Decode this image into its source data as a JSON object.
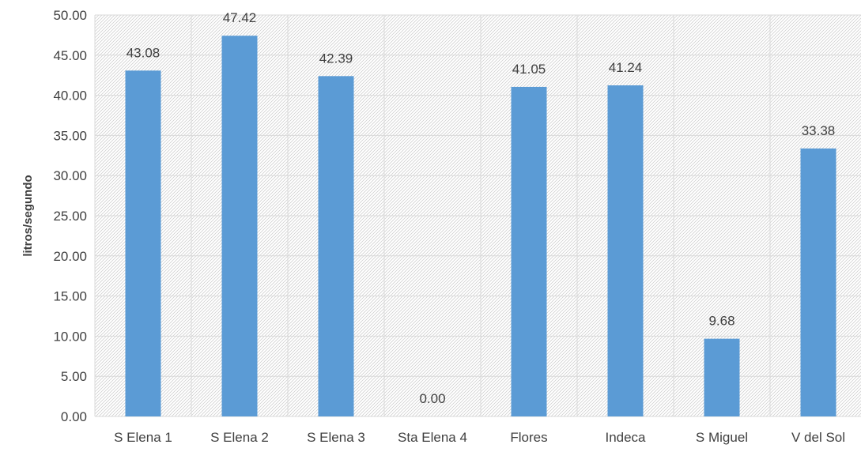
{
  "chart_data": {
    "type": "bar",
    "categories": [
      "S Elena 1",
      "S Elena 2",
      "S Elena 3",
      "Sta Elena 4",
      "Flores",
      "Indeca",
      "S Miguel",
      "V del Sol"
    ],
    "values": [
      43.08,
      47.42,
      42.39,
      0.0,
      41.05,
      41.24,
      9.68,
      33.38
    ],
    "data_labels": [
      "43.08",
      "47.42",
      "42.39",
      "0.00",
      "41.05",
      "41.24",
      "9.68",
      "33.38"
    ],
    "ylabel": "litros/segundo",
    "xlabel": "",
    "ylim": [
      0,
      50
    ],
    "yticks": [
      "0.00",
      "5.00",
      "10.00",
      "15.00",
      "20.00",
      "25.00",
      "30.00",
      "35.00",
      "40.00",
      "45.00",
      "50.00"
    ],
    "grid": true,
    "legend": "none",
    "bar_color": "#5b9bd5",
    "grid_color": "#d9d9d9",
    "text_color": "#404040"
  }
}
